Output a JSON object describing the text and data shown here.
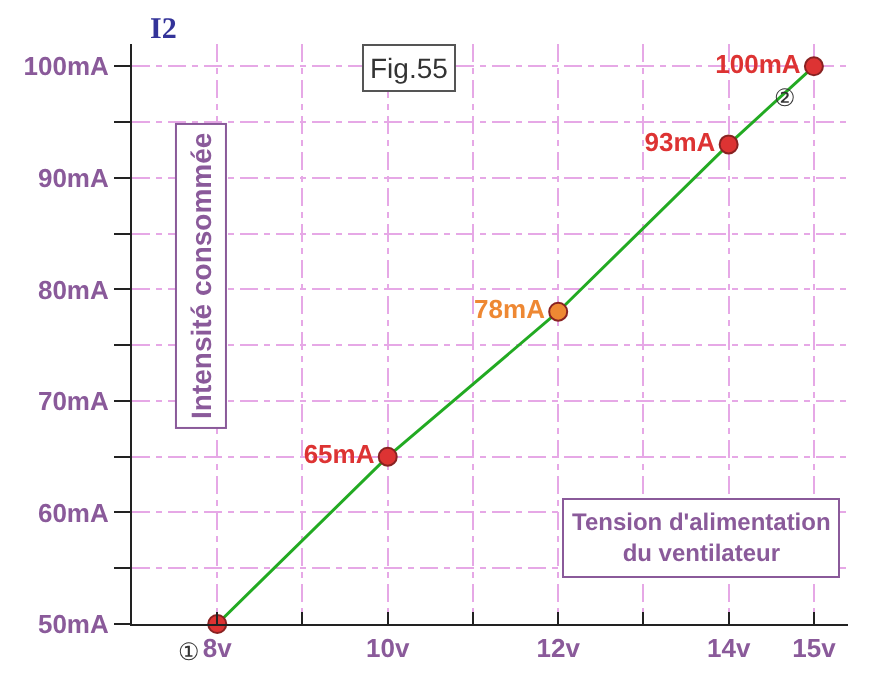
{
  "chart_data": {
    "type": "line",
    "title": "Fig.55",
    "ylabel": "I2",
    "xlabel": "Tension d'alimentation du ventilateur",
    "x": [
      8,
      10,
      12,
      14,
      15
    ],
    "series": [
      {
        "color": "#22aa22",
        "colors": [
          "#dd3333",
          "#dd3333",
          "#ee8833",
          "#dd3333",
          "#dd3333"
        ],
        "values": [
          50,
          65,
          78,
          93,
          100
        ],
        "value_labels": [
          null,
          "65mA",
          "78mA",
          "93mA",
          "100mA"
        ]
      }
    ],
    "xlim": [
      7,
      15.4
    ],
    "ylim": [
      50,
      102
    ],
    "xticks": [
      {
        "value": 8,
        "label": "8v"
      },
      {
        "value": 9,
        "label": null
      },
      {
        "value": 10,
        "label": "10v"
      },
      {
        "value": 11,
        "label": null
      },
      {
        "value": 12,
        "label": "12v"
      },
      {
        "value": 13,
        "label": null
      },
      {
        "value": 14,
        "label": "14v"
      },
      {
        "value": 15,
        "label": "15v"
      }
    ],
    "yticks": [
      {
        "value": 50,
        "label": "50mA"
      },
      {
        "value": 55,
        "label": null
      },
      {
        "value": 60,
        "label": "60mA"
      },
      {
        "value": 65,
        "label": null
      },
      {
        "value": 70,
        "label": "70mA"
      },
      {
        "value": 75,
        "label": null
      },
      {
        "value": 80,
        "label": "80mA"
      },
      {
        "value": 85,
        "label": null
      },
      {
        "value": 90,
        "label": "90mA"
      },
      {
        "value": 95,
        "label": null
      },
      {
        "value": 100,
        "label": "100mA"
      }
    ],
    "annotations": [
      "Intensité consommée",
      {
        "text": "①",
        "x": 8,
        "y": 50
      },
      {
        "text": "②",
        "x": 15,
        "y": 100
      }
    ],
    "grid": true,
    "marker": "circle",
    "line_style": "solid"
  }
}
